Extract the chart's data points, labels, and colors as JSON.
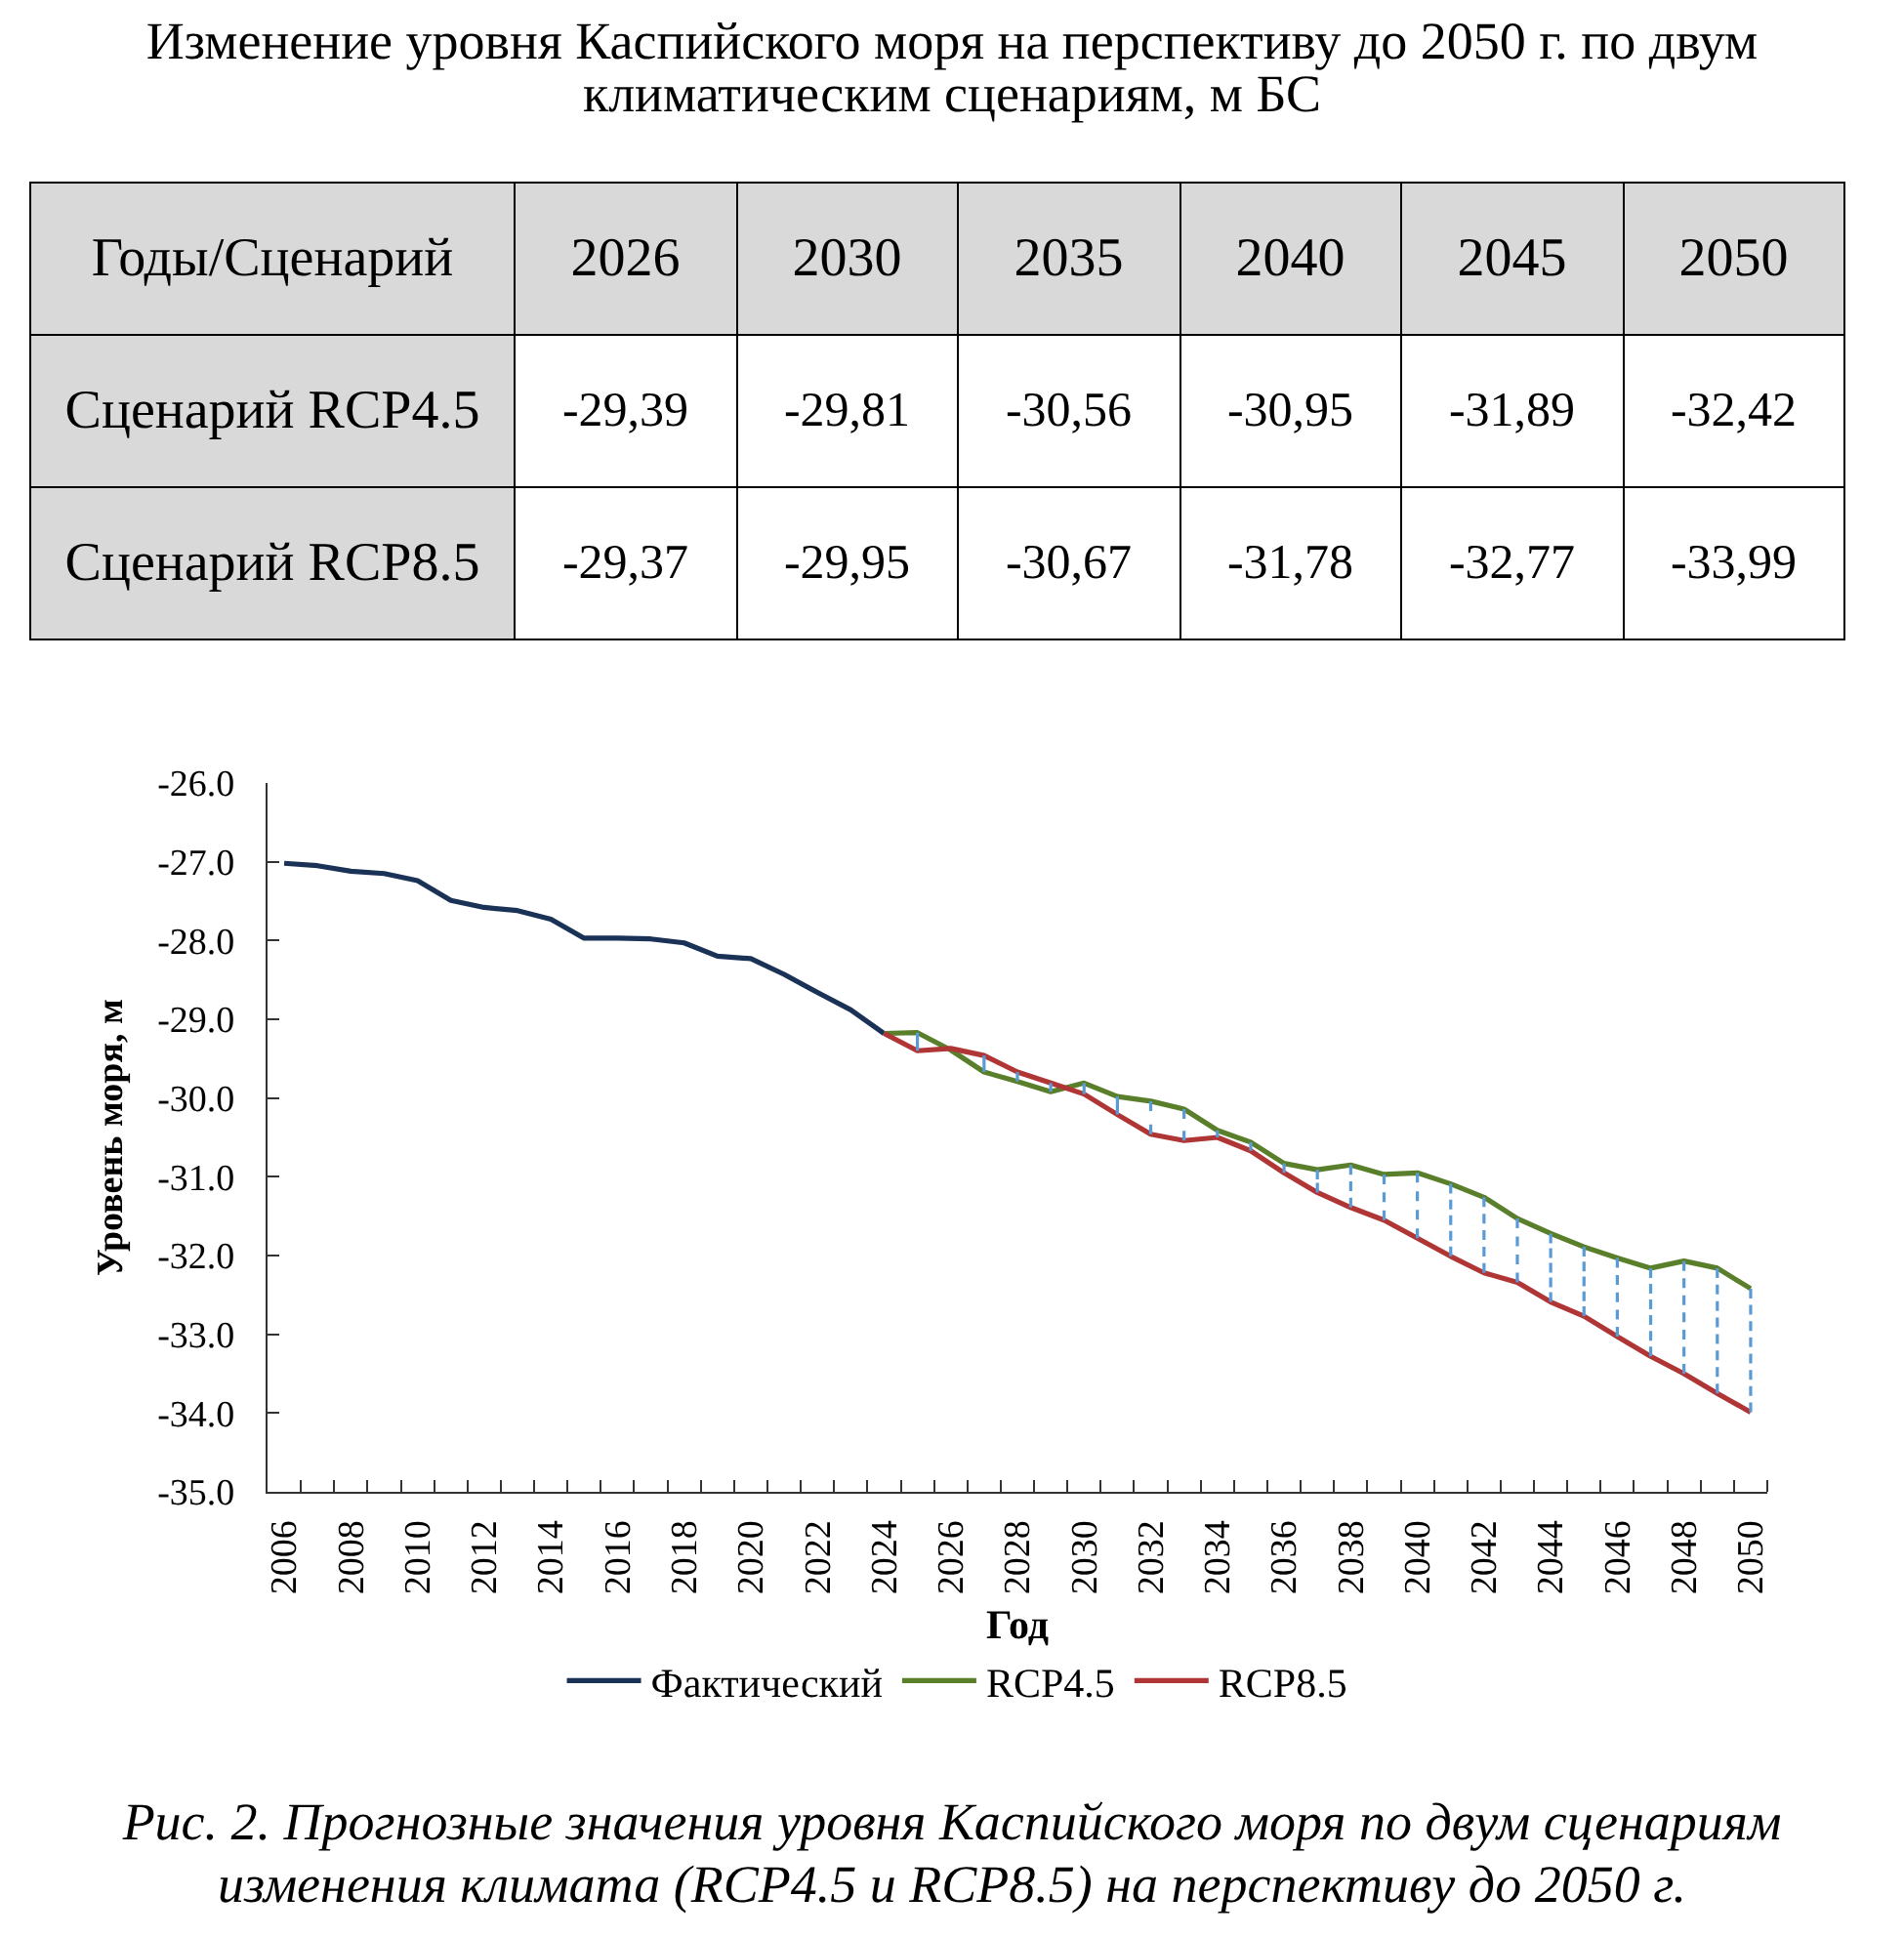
{
  "chart_data": [
    {
      "type": "heatmap",
      "title": "Изменение уровня Каспийского моря на перспективу до 2050 г. по двум климатическим сценариям, м БС",
      "xlabel": "Годы/Сценарий",
      "categories": [
        "2026",
        "2030",
        "2035",
        "2040",
        "2045",
        "2050"
      ],
      "y_categories": [
        "Сценарий RCP4.5",
        "Сценарий RCP8.5"
      ],
      "cells": [
        [
          -29.39,
          -29.81,
          -30.56,
          -30.95,
          -31.89,
          -32.42
        ],
        [
          -29.37,
          -29.95,
          -30.67,
          -31.78,
          -32.77,
          -33.99
        ]
      ],
      "cell_labels": [
        [
          "-29,39",
          "-29,81",
          "-30,56",
          "-30,95",
          "-31,89",
          "-32,42"
        ],
        [
          "-29,37",
          "-29,95",
          "-30,67",
          "-31,78",
          "-32,77",
          "-33,99"
        ]
      ]
    },
    {
      "type": "line",
      "xlabel": "Год",
      "ylabel": "Уровень моря, м",
      "legend": "bottom",
      "xlim": [
        2005.5,
        2050.5
      ],
      "xticks": [
        2006,
        2008,
        2010,
        2012,
        2014,
        2016,
        2018,
        2020,
        2022,
        2024,
        2026,
        2028,
        2030,
        2032,
        2034,
        2036,
        2038,
        2040,
        2042,
        2044,
        2046,
        2048,
        2050,
        {
          "value": 2006.5,
          "label": null
        },
        {
          "value": 2007.5,
          "label": null
        },
        {
          "value": 2008.5,
          "label": null
        },
        {
          "value": 2009.5,
          "label": null
        },
        {
          "value": 2010.5,
          "label": null
        },
        {
          "value": 2011.5,
          "label": null
        },
        {
          "value": 2012.5,
          "label": null
        },
        {
          "value": 2013.5,
          "label": null
        },
        {
          "value": 2014.5,
          "label": null
        },
        {
          "value": 2015.5,
          "label": null
        },
        {
          "value": 2016.5,
          "label": null
        },
        {
          "value": 2017.5,
          "label": null
        },
        {
          "value": 2018.5,
          "label": null
        },
        {
          "value": 2019.5,
          "label": null
        },
        {
          "value": 2020.5,
          "label": null
        },
        {
          "value": 2021.5,
          "label": null
        },
        {
          "value": 2022.5,
          "label": null
        },
        {
          "value": 2023.5,
          "label": null
        },
        {
          "value": 2024.5,
          "label": null
        },
        {
          "value": 2025.5,
          "label": null
        },
        {
          "value": 2026.5,
          "label": null
        },
        {
          "value": 2027.5,
          "label": null
        },
        {
          "value": 2028.5,
          "label": null
        },
        {
          "value": 2029.5,
          "label": null
        },
        {
          "value": 2030.5,
          "label": null
        },
        {
          "value": 2031.5,
          "label": null
        },
        {
          "value": 2032.5,
          "label": null
        },
        {
          "value": 2033.5,
          "label": null
        },
        {
          "value": 2034.5,
          "label": null
        },
        {
          "value": 2035.5,
          "label": null
        },
        {
          "value": 2036.5,
          "label": null
        },
        {
          "value": 2037.5,
          "label": null
        },
        {
          "value": 2038.5,
          "label": null
        },
        {
          "value": 2039.5,
          "label": null
        },
        {
          "value": 2040.5,
          "label": null
        },
        {
          "value": 2041.5,
          "label": null
        },
        {
          "value": 2042.5,
          "label": null
        },
        {
          "value": 2043.5,
          "label": null
        },
        {
          "value": 2044.5,
          "label": null
        },
        {
          "value": 2045.5,
          "label": null
        },
        {
          "value": 2046.5,
          "label": null
        },
        {
          "value": 2047.5,
          "label": null
        },
        {
          "value": 2048.5,
          "label": null
        },
        {
          "value": 2049.5,
          "label": null
        },
        {
          "value": 2050.5,
          "label": null
        }
      ],
      "ylim": [
        -35,
        -26
      ],
      "yticks": [
        {
          "value": -35,
          "label": "-35.0"
        },
        {
          "value": -34,
          "label": "-34.0"
        },
        {
          "value": -33,
          "label": "-33.0"
        },
        {
          "value": -32,
          "label": "-32.0"
        },
        {
          "value": -31,
          "label": "-31.0"
        },
        {
          "value": -30,
          "label": "-30.0"
        },
        {
          "value": -29,
          "label": "-29.0"
        },
        {
          "value": -28,
          "label": "-28.0"
        },
        {
          "value": -27,
          "label": "-27.0"
        },
        {
          "value": -26,
          "label": "-26.0"
        }
      ],
      "series": [
        {
          "name": "Фактический",
          "color": "#1b3257",
          "x": [
            2006,
            2007,
            2008,
            2009,
            2010,
            2011,
            2012,
            2013,
            2014,
            2015,
            2016,
            2017,
            2018,
            2019,
            2020,
            2021,
            2022,
            2023,
            2024
          ],
          "values": [
            -27.02,
            -27.05,
            -27.12,
            -27.15,
            -27.24,
            -27.49,
            -27.58,
            -27.62,
            -27.73,
            -27.97,
            -27.97,
            -27.98,
            -28.03,
            -28.2,
            -28.23,
            -28.43,
            -28.66,
            -28.88,
            -29.18
          ]
        },
        {
          "name": "RCP4.5",
          "color": "#5a7f2b",
          "x": [
            2024,
            2025,
            2026,
            2027,
            2028,
            2029,
            2030,
            2031,
            2032,
            2033,
            2034,
            2035,
            2036,
            2037,
            2038,
            2039,
            2040,
            2041,
            2042,
            2043,
            2044,
            2045,
            2046,
            2047,
            2048,
            2049,
            2050
          ],
          "values": [
            -29.18,
            -29.17,
            -29.39,
            -29.67,
            -29.79,
            -29.92,
            -29.81,
            -29.98,
            -30.04,
            -30.14,
            -30.41,
            -30.56,
            -30.83,
            -30.91,
            -30.85,
            -30.97,
            -30.95,
            -31.09,
            -31.26,
            -31.53,
            -31.72,
            -31.89,
            -32.03,
            -32.16,
            -32.07,
            -32.16,
            -32.42
          ],
          "errors": [
            null,
            [
              -29.4,
              -29.17
            ],
            null,
            [
              -29.67,
              -29.46
            ],
            [
              -29.79,
              -29.67
            ],
            [
              -29.92,
              -29.81
            ],
            [
              -29.95,
              -29.81
            ],
            [
              -30.21,
              -29.98
            ],
            [
              -30.46,
              -30.04
            ],
            [
              -30.54,
              -30.14
            ],
            [
              -30.5,
              -30.41
            ],
            [
              -30.67,
              -30.56
            ],
            [
              -30.95,
              -30.83
            ],
            [
              -31.2,
              -30.91
            ],
            [
              -31.39,
              -30.85
            ],
            [
              -31.55,
              -30.97
            ],
            [
              -31.78,
              -30.95
            ],
            [
              -32.01,
              -31.09
            ],
            [
              -32.22,
              -31.26
            ],
            [
              -32.34,
              -31.53
            ],
            [
              -32.59,
              -31.72
            ],
            [
              -32.77,
              -31.89
            ],
            [
              -33.03,
              -32.03
            ],
            [
              -33.28,
              -32.16
            ],
            [
              -33.5,
              -32.07
            ],
            [
              -33.75,
              -32.16
            ],
            [
              -33.99,
              -32.42
            ]
          ]
        },
        {
          "name": "RCP8.5",
          "color": "#b03535",
          "x": [
            2024,
            2025,
            2026,
            2027,
            2028,
            2029,
            2030,
            2031,
            2032,
            2033,
            2034,
            2035,
            2036,
            2037,
            2038,
            2039,
            2040,
            2041,
            2042,
            2043,
            2044,
            2045,
            2046,
            2047,
            2048,
            2049,
            2050
          ],
          "values": [
            -29.18,
            -29.4,
            -29.37,
            -29.46,
            -29.67,
            -29.81,
            -29.95,
            -30.21,
            -30.46,
            -30.54,
            -30.5,
            -30.67,
            -30.95,
            -31.2,
            -31.39,
            -31.55,
            -31.78,
            -32.01,
            -32.22,
            -32.34,
            -32.59,
            -32.77,
            -33.03,
            -33.28,
            -33.5,
            -33.75,
            -33.99
          ]
        }
      ],
      "annotations": [
        "Рис. 2. Прогнозные значения уровня Каспийского моря по двум сценариям изменения климата (RCP4.5 и RCP8.5) на перспективу до 2050 г."
      ]
    }
  ]
}
